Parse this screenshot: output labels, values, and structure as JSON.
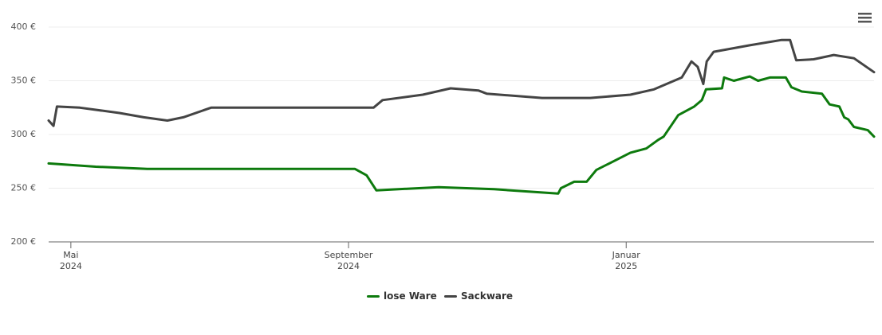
{
  "chart_data": {
    "type": "line",
    "xlim": [
      4.68,
      16.57
    ],
    "xticks": [
      {
        "value": 5,
        "label": "Mai\n2024"
      },
      {
        "value": 9,
        "label": "September\n2024"
      },
      {
        "value": 13,
        "label": "Januar\n2025"
      }
    ],
    "ylim": [
      200,
      400
    ],
    "yticks": [
      {
        "value": 200,
        "label": "200 €"
      },
      {
        "value": 250,
        "label": "250 €"
      },
      {
        "value": 300,
        "label": "300 €"
      },
      {
        "value": 350,
        "label": "350 €"
      },
      {
        "value": 400,
        "label": "400 €"
      }
    ],
    "grid": true,
    "legend": "bottom",
    "series": [
      {
        "name": "lose Ware",
        "color": "#0d7a0d",
        "x": [
          4.68,
          5.36,
          6.1,
          7.43,
          9.09,
          9.26,
          9.4,
          10.3,
          11.1,
          12.02,
          12.06,
          12.25,
          12.43,
          12.57,
          13.06,
          13.29,
          13.46,
          13.54,
          13.75,
          13.98,
          14.09,
          14.15,
          14.38,
          14.41,
          14.55,
          14.78,
          14.9,
          15.07,
          15.3,
          15.38,
          15.53,
          15.82,
          15.93,
          16.07,
          16.14,
          16.2,
          16.28,
          16.48,
          16.57
        ],
        "values": [
          273,
          270,
          268,
          268,
          268,
          262,
          248,
          251,
          249,
          245,
          250,
          256,
          256,
          267,
          283,
          287,
          295,
          298,
          318,
          326,
          332,
          342,
          343,
          353,
          350,
          354,
          350,
          353,
          353,
          344,
          340,
          338,
          328,
          326,
          316,
          314,
          307,
          304,
          298
        ]
      },
      {
        "name": "Sackware",
        "color": "#444444",
        "x": [
          4.68,
          4.75,
          4.8,
          5.13,
          5.7,
          6.05,
          6.39,
          6.62,
          7.02,
          8.57,
          9.36,
          9.49,
          10.07,
          10.47,
          10.87,
          10.99,
          11.79,
          12.48,
          13.06,
          13.4,
          13.8,
          13.94,
          14.03,
          14.11,
          14.16,
          14.26,
          14.78,
          15.24,
          15.36,
          15.45,
          15.7,
          15.99,
          16.28,
          16.57
        ],
        "values": [
          313,
          308,
          326,
          325,
          320,
          316,
          313,
          316,
          325,
          325,
          325,
          332,
          337,
          343,
          341,
          338,
          334,
          334,
          337,
          342,
          353,
          368,
          363,
          347,
          368,
          377,
          383,
          388,
          388,
          369,
          370,
          374,
          371,
          358
        ]
      }
    ]
  }
}
